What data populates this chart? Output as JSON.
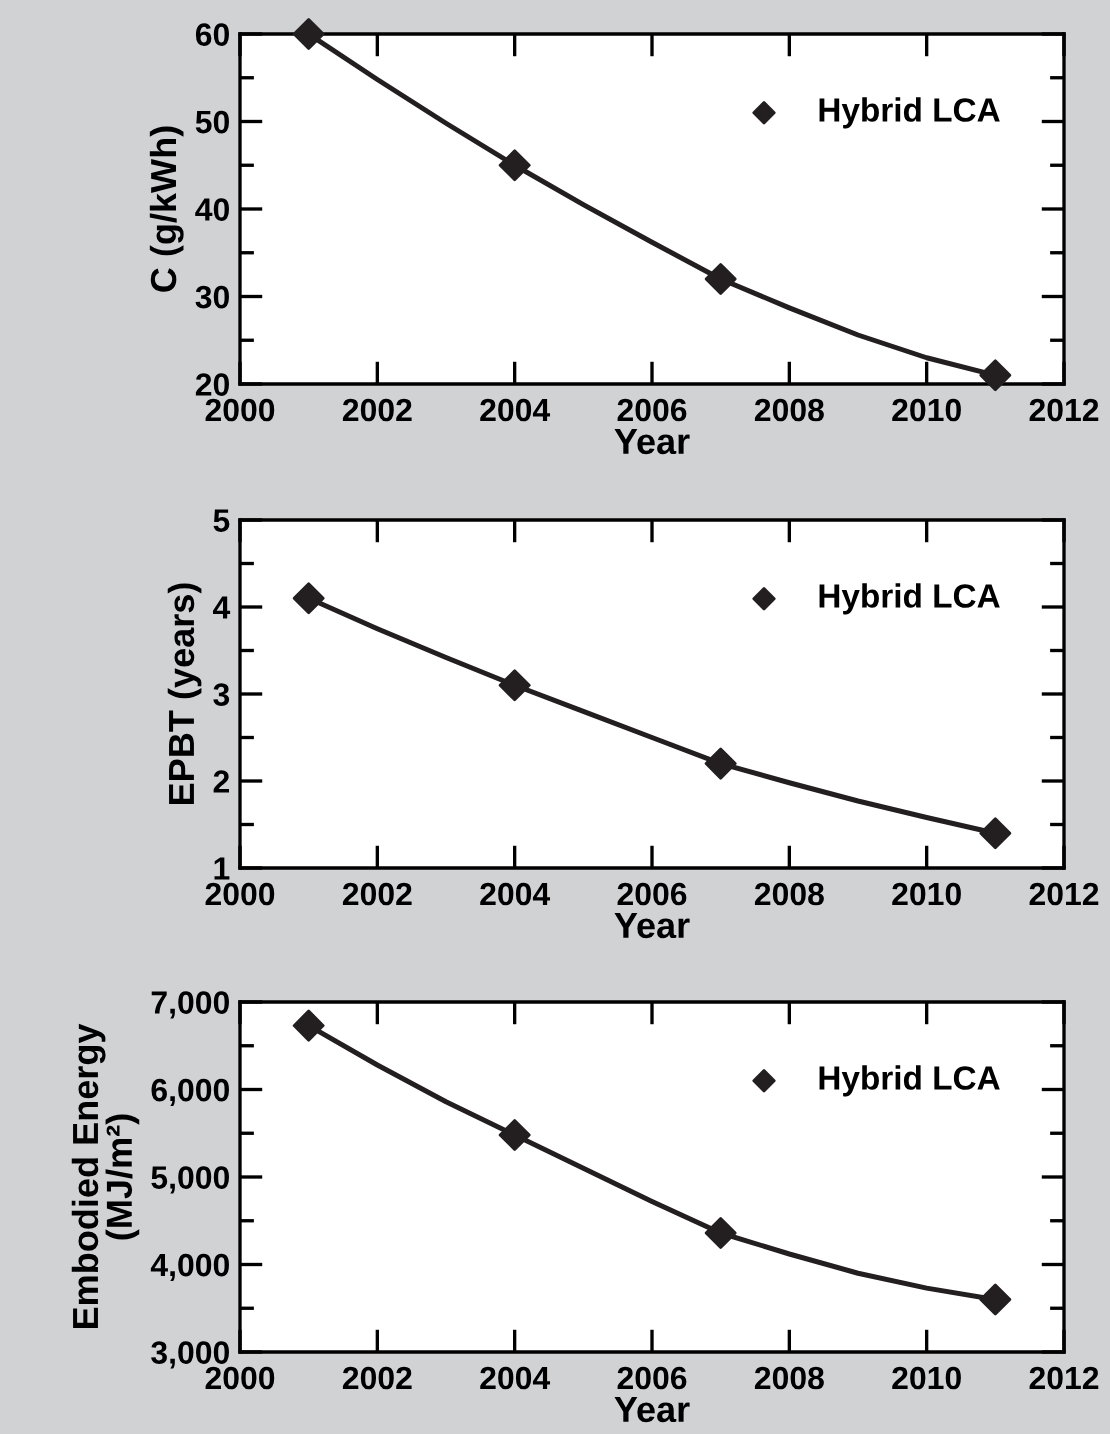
{
  "chart_data": [
    {
      "type": "scatter",
      "xlabel": "Year",
      "ylabel": "C (g/kWh)",
      "xlim": [
        2000,
        2012
      ],
      "xticks": [
        2000,
        2002,
        2004,
        2006,
        2008,
        2010,
        2012
      ],
      "ylim": [
        20,
        60
      ],
      "yticks": [
        20,
        {
          "value": 25,
          "label": null
        },
        30,
        {
          "value": 35,
          "label": null
        },
        40,
        {
          "value": 45,
          "label": null
        },
        50,
        {
          "value": 55,
          "label": null
        },
        60
      ],
      "legend": "top right",
      "grid": false,
      "series": [
        {
          "name": "Hybrid LCA",
          "marker": "diamond",
          "color": "#231f20",
          "x": [
            2001,
            2004,
            2007,
            2011
          ],
          "values": [
            60,
            45,
            32,
            21
          ]
        },
        {
          "type": "line",
          "line_style": "solid",
          "color": "#231f20",
          "x": [
            2001,
            2002,
            2003,
            2004,
            2005,
            2006,
            2007,
            2008,
            2009,
            2010,
            2011
          ],
          "values": [
            60,
            54.8,
            49.8,
            45,
            40.5,
            36.2,
            32,
            28.7,
            25.6,
            23,
            21
          ]
        }
      ]
    },
    {
      "type": "scatter",
      "xlabel": "Year",
      "ylabel": "EPBT (years)",
      "xlim": [
        2000,
        2012
      ],
      "xticks": [
        2000,
        2002,
        2004,
        2006,
        2008,
        2010,
        2012
      ],
      "ylim": [
        1,
        5
      ],
      "yticks": [
        1,
        {
          "value": 1.5,
          "label": null
        },
        2,
        {
          "value": 2.5,
          "label": null
        },
        3,
        {
          "value": 3.5,
          "label": null
        },
        4,
        {
          "value": 4.5,
          "label": null
        },
        5
      ],
      "legend": "top right",
      "grid": false,
      "series": [
        {
          "name": "Hybrid LCA",
          "marker": "diamond",
          "color": "#231f20",
          "x": [
            2001,
            2004,
            2007,
            2011
          ],
          "values": [
            4.1,
            3.1,
            2.2,
            1.4
          ]
        },
        {
          "type": "line",
          "line_style": "solid",
          "color": "#231f20",
          "x": [
            2001,
            2002,
            2003,
            2004,
            2005,
            2006,
            2007,
            2008,
            2009,
            2010,
            2011
          ],
          "values": [
            4.1,
            3.75,
            3.42,
            3.1,
            2.8,
            2.5,
            2.2,
            1.98,
            1.77,
            1.58,
            1.4
          ]
        }
      ]
    },
    {
      "type": "scatter",
      "xlabel": "Year",
      "ylabel": "Embodied Energy\n(MJ/m²)",
      "xlim": [
        2000,
        2012
      ],
      "xticks": [
        2000,
        2002,
        2004,
        2006,
        2008,
        2010,
        2012
      ],
      "ylim": [
        3000,
        7000
      ],
      "yticks": [
        {
          "value": 3000,
          "label": "3,000"
        },
        {
          "value": 3500,
          "label": null
        },
        {
          "value": 4000,
          "label": "4,000"
        },
        {
          "value": 4500,
          "label": null
        },
        {
          "value": 5000,
          "label": "5,000"
        },
        {
          "value": 5500,
          "label": null
        },
        {
          "value": 6000,
          "label": "6,000"
        },
        {
          "value": 6500,
          "label": null
        },
        {
          "value": 7000,
          "label": "7,000"
        }
      ],
      "legend": "top right",
      "grid": false,
      "series": [
        {
          "name": "Hybrid LCA",
          "marker": "diamond",
          "color": "#231f20",
          "x": [
            2001,
            2004,
            2007,
            2011
          ],
          "values": [
            6730,
            5480,
            4360,
            3600
          ]
        },
        {
          "type": "line",
          "line_style": "solid",
          "color": "#231f20",
          "x": [
            2001,
            2002,
            2003,
            2004,
            2005,
            2006,
            2007,
            2008,
            2009,
            2010,
            2011
          ],
          "values": [
            6730,
            6280,
            5860,
            5480,
            5100,
            4720,
            4360,
            4120,
            3900,
            3730,
            3600
          ]
        }
      ]
    }
  ]
}
